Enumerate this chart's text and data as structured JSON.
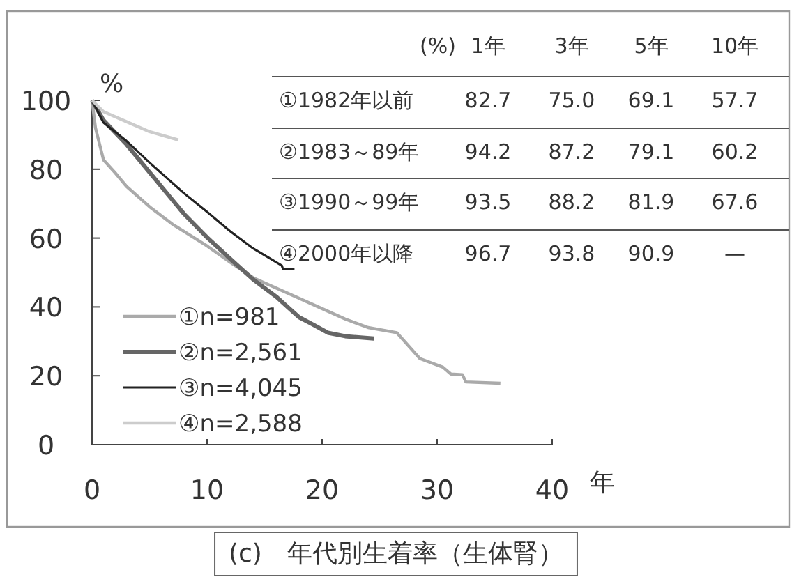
{
  "chart_data": {
    "type": "line",
    "title": "(c)　年代別生着率（生体腎）",
    "xlabel": "年",
    "ylabel": "%",
    "xlim": [
      0,
      40
    ],
    "xticks": [
      0,
      10,
      20,
      30,
      40
    ],
    "ylim": [
      0,
      100
    ],
    "yticks": [
      0,
      20,
      40,
      60,
      80,
      100
    ],
    "grid": false,
    "legend": "bottom left",
    "annotations": [
      "(%)",
      "1年",
      "3年",
      "5年",
      "10年",
      "①1982年以前",
      "82.7",
      "75.0",
      "69.1",
      "57.7",
      "②1983～89年",
      "94.2",
      "87.2",
      "79.1",
      "60.2",
      "③1990～99年",
      "93.5",
      "88.2",
      "81.9",
      "67.6",
      "④2000年以降",
      "96.7",
      "93.8",
      "90.9",
      "—"
    ],
    "series": [
      {
        "name": "①n=981",
        "color": "#aaaaaa",
        "x": [
          0,
          0.3,
          1,
          2,
          3,
          5,
          7,
          10,
          12,
          14,
          16,
          18,
          20,
          22,
          24,
          26.5,
          28.5,
          30.5,
          31.2,
          32.2,
          32.5,
          35.5
        ],
        "values": [
          100,
          92,
          82.7,
          79,
          75,
          69.1,
          64,
          57.7,
          53,
          48.5,
          45.5,
          42.5,
          39.5,
          36.5,
          34,
          32.5,
          25,
          22.5,
          20.5,
          20.3,
          18.2,
          17.8
        ]
      },
      {
        "name": "②n=2,561",
        "color": "#666666",
        "x": [
          0,
          1,
          3,
          5,
          8,
          10,
          12,
          14,
          16,
          17,
          18,
          19.2,
          20.5,
          22,
          24.5
        ],
        "values": [
          100,
          94.2,
          87.2,
          79.1,
          67,
          60.2,
          54,
          48,
          43,
          40,
          37,
          34.9,
          32.5,
          31.5,
          30.8
        ]
      },
      {
        "name": "③n=4,045",
        "color": "#222222",
        "x": [
          0,
          1,
          3,
          5,
          8,
          10,
          12,
          14,
          15.5,
          16.5,
          16.6,
          17.6
        ],
        "values": [
          100,
          93.5,
          88.2,
          81.9,
          73,
          67.6,
          62,
          57,
          54,
          52,
          51,
          51
        ]
      },
      {
        "name": "④n=2,588",
        "color": "#cccccc",
        "x": [
          0,
          1,
          3,
          5,
          7.5
        ],
        "values": [
          100,
          96.7,
          93.8,
          90.9,
          88.5
        ]
      }
    ]
  }
}
